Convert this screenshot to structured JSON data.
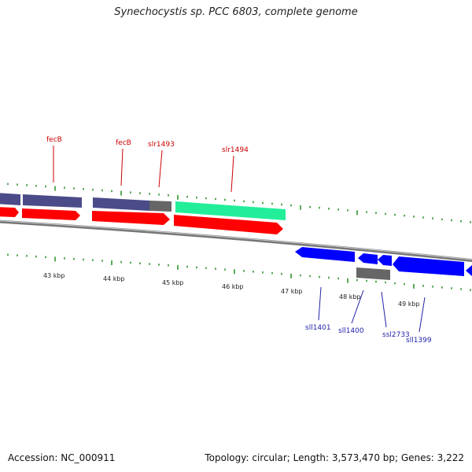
{
  "title": "Synechocystis sp. PCC 6803, complete genome",
  "footer": {
    "accession": "Accession: NC_000911",
    "summary": "Topology: circular; Length: 3,573,470 bp; Genes: 3,222"
  },
  "colors": {
    "forward_cds": "#ff0000",
    "reverse_cds": "#0000ff",
    "gene_slate": "#4b4b8a",
    "gene_teal": "#22ee99",
    "gene_gray": "#666666",
    "tick": "#118811",
    "forward_label": "#cc0000",
    "reverse_label": "#2222aa",
    "backbone": "#777777"
  },
  "kbp_ticks": [
    "43 kbp",
    "44 kbp",
    "45 kbp",
    "46 kbp",
    "47 kbp",
    "48 kbp",
    "49 kbp"
  ],
  "forward_labels": [
    "fecB",
    "fecB",
    "slr1493",
    "slr1494"
  ],
  "reverse_labels": [
    "sll1401",
    "sll1400",
    "ssl2733",
    "sll1399"
  ]
}
